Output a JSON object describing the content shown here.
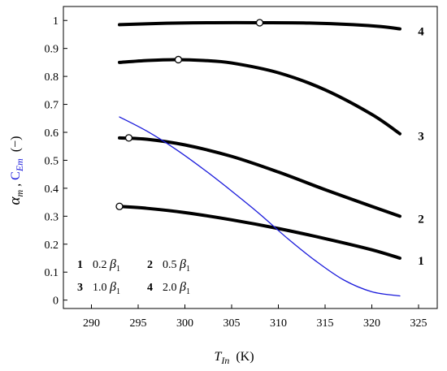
{
  "chart_data": {
    "type": "line",
    "xlabel": {
      "symbol": "T",
      "sub": "In",
      "unit": "(K)"
    },
    "ylabel": {
      "alpha": "α",
      "alpha_sub": "m",
      "sep": " , ",
      "c": "C",
      "c_sub": "Em",
      "unit": "(−)"
    },
    "xlim": [
      287,
      327
    ],
    "ylim": [
      -0.03,
      1.05
    ],
    "xticks": [
      290,
      295,
      300,
      305,
      310,
      315,
      320,
      325
    ],
    "yticks": [
      0,
      0.1,
      0.2,
      0.3,
      0.4,
      0.5,
      0.6,
      0.7,
      0.8,
      0.9,
      1
    ],
    "ytick_labels": [
      "0",
      "0.1",
      "0.2",
      "0.3",
      "0.4",
      "0.5",
      "0.6",
      "0.7",
      "0.8",
      "0.9",
      "1"
    ],
    "series": [
      {
        "label": "1",
        "color": "#000000",
        "x": [
          293,
          296,
          300,
          305,
          310,
          315,
          320,
          323
        ],
        "y": [
          0.335,
          0.328,
          0.313,
          0.287,
          0.256,
          0.22,
          0.18,
          0.15
        ],
        "marker": {
          "x": 293,
          "y": 0.335
        }
      },
      {
        "label": "2",
        "color": "#000000",
        "x": [
          293,
          296,
          300,
          305,
          310,
          315,
          320,
          323
        ],
        "y": [
          0.58,
          0.575,
          0.555,
          0.514,
          0.458,
          0.395,
          0.335,
          0.3
        ],
        "marker": {
          "x": 294,
          "y": 0.58
        }
      },
      {
        "label": "3",
        "color": "#000000",
        "x": [
          293,
          296,
          299,
          302,
          305,
          310,
          315,
          320,
          323
        ],
        "y": [
          0.85,
          0.857,
          0.86,
          0.857,
          0.848,
          0.813,
          0.752,
          0.664,
          0.595
        ],
        "marker": {
          "x": 299.3,
          "y": 0.86
        }
      },
      {
        "label": "4",
        "color": "#000000",
        "x": [
          293,
          298,
          303,
          308,
          313,
          318,
          321,
          323
        ],
        "y": [
          0.985,
          0.99,
          0.992,
          0.992,
          0.991,
          0.985,
          0.978,
          0.97
        ],
        "marker": {
          "x": 308,
          "y": 0.992
        }
      },
      {
        "label": "C_Em",
        "color": "#1a1adb",
        "x": [
          293,
          296,
          299,
          302,
          305,
          308,
          311,
          314,
          317,
          320,
          323
        ],
        "y": [
          0.655,
          0.603,
          0.54,
          0.468,
          0.39,
          0.308,
          0.22,
          0.14,
          0.072,
          0.03,
          0.015
        ]
      }
    ],
    "legend": [
      {
        "num": "1",
        "value": "0.2",
        "sym": "β",
        "sub": "1"
      },
      {
        "num": "2",
        "value": "0.5",
        "sym": "β",
        "sub": "1"
      },
      {
        "num": "3",
        "value": "1.0",
        "sym": "β",
        "sub": "1"
      },
      {
        "num": "4",
        "value": "2.0",
        "sym": "β",
        "sub": "1"
      }
    ],
    "legend_placement": "bottom-left",
    "grid": false
  }
}
